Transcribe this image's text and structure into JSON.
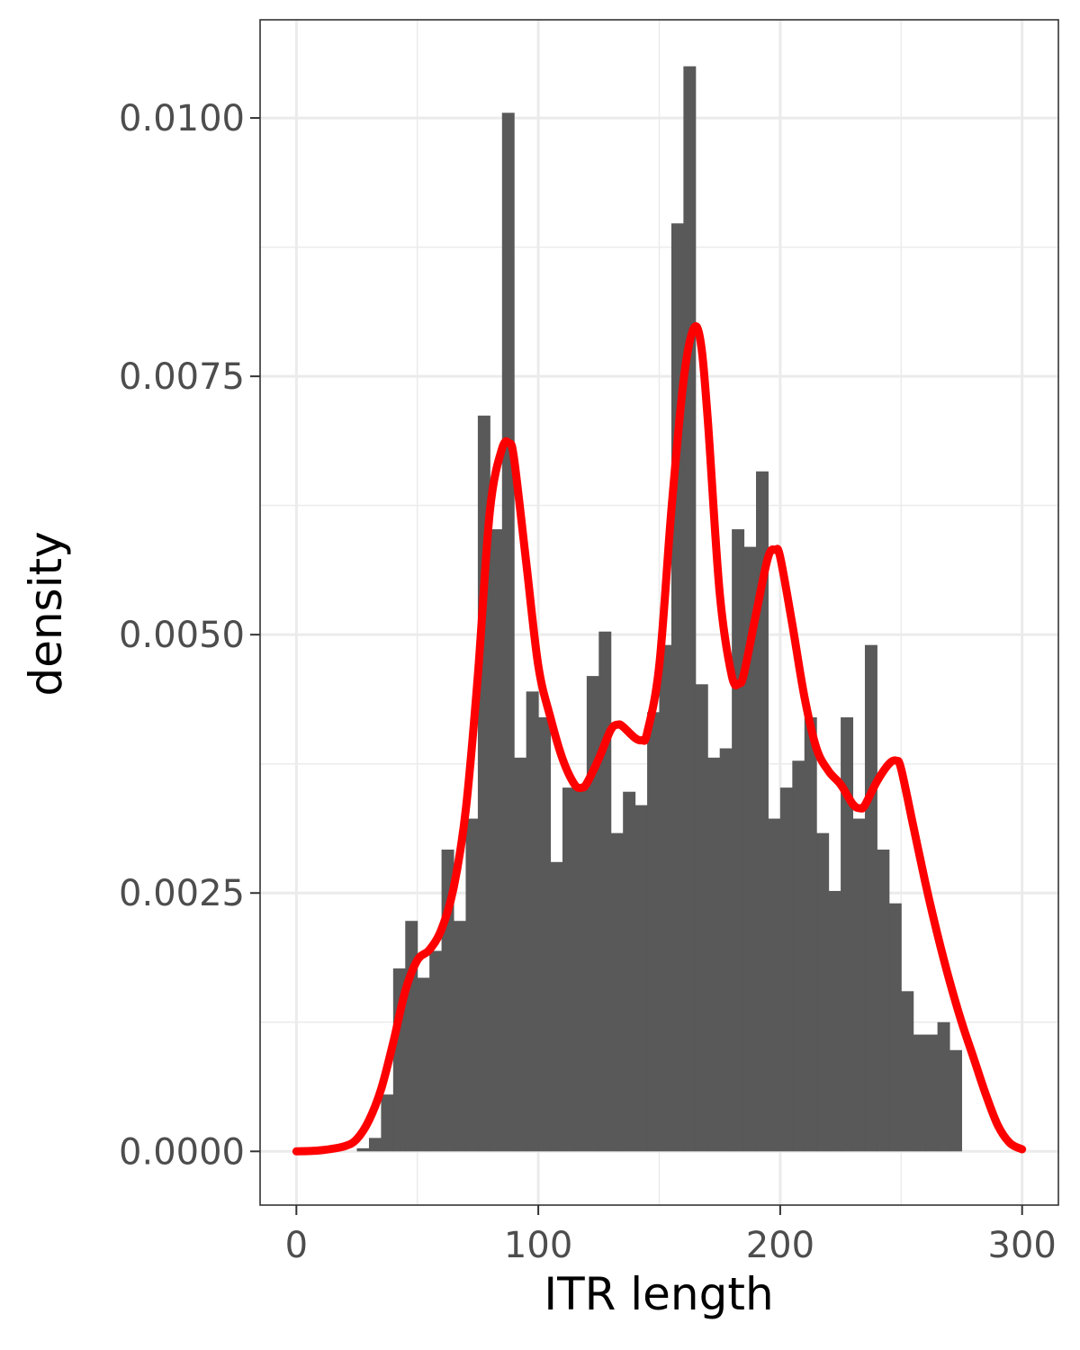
{
  "chart_data": {
    "type": "bar",
    "xlabel": "ITR length",
    "ylabel": "density",
    "xlim": [
      -15,
      315
    ],
    "ylim": [
      -0.00052,
      0.01095
    ],
    "x_ticks": [
      0,
      100,
      200,
      300
    ],
    "x_tick_labels": [
      "0",
      "100",
      "200",
      "300"
    ],
    "y_ticks": [
      0,
      0.0025,
      0.005,
      0.0075,
      0.01
    ],
    "y_tick_labels": [
      "0.0000",
      "0.0025",
      "0.0050",
      "0.0075",
      "0.0100"
    ],
    "grid": true,
    "colors": {
      "bars": "#595959",
      "density_line": "#ff0000",
      "grid": "#ebebeb",
      "panel_border": "#333333"
    },
    "histogram": {
      "bin_width": 5,
      "bin_starts": [
        25,
        30,
        35,
        40,
        45,
        50,
        55,
        60,
        65,
        70,
        75,
        80,
        85,
        90,
        95,
        100,
        105,
        110,
        115,
        120,
        125,
        130,
        135,
        140,
        145,
        150,
        155,
        160,
        165,
        170,
        175,
        180,
        185,
        190,
        195,
        200,
        205,
        210,
        215,
        220,
        225,
        230,
        235,
        240,
        245,
        250,
        255,
        260,
        265,
        270,
        275,
        280,
        285
      ],
      "density": [
        3e-05,
        0.00013,
        0.00055,
        0.00177,
        0.00223,
        0.00168,
        0.00194,
        0.00292,
        0.00223,
        0.00322,
        0.00712,
        0.00602,
        0.01005,
        0.00381,
        0.00445,
        0.0042,
        0.0028,
        0.00352,
        0.00352,
        0.0046,
        0.00503,
        0.00308,
        0.00348,
        0.00335,
        0.00425,
        0.0049,
        0.00898,
        0.0105,
        0.00452,
        0.00381,
        0.0039,
        0.00602,
        0.00585,
        0.00658,
        0.00322,
        0.00352,
        0.00378,
        0.0042,
        0.00308,
        0.00252,
        0.0042,
        0.00322,
        0.0049,
        0.00292,
        0.0024,
        0.00155,
        0.00113,
        0.00113,
        0.00125,
        0.00098,
        0,
        0,
        0
      ]
    },
    "density_curve": {
      "x": [
        0,
        10,
        20,
        25,
        30,
        35,
        40,
        45,
        50,
        55,
        60,
        65,
        70,
        75,
        80,
        85,
        88,
        90,
        95,
        100,
        105,
        110,
        115,
        118,
        120,
        125,
        130,
        133,
        135,
        140,
        143,
        145,
        150,
        155,
        160,
        164,
        167,
        170,
        175,
        180,
        183,
        185,
        190,
        195,
        198,
        200,
        205,
        210,
        215,
        220,
        225,
        230,
        233,
        235,
        240,
        245,
        248,
        250,
        255,
        260,
        265,
        270,
        275,
        280,
        285,
        290,
        295,
        300
      ],
      "y": [
        0.0,
        1e-05,
        5e-05,
        0.00012,
        0.0003,
        0.0006,
        0.00105,
        0.00155,
        0.00185,
        0.00195,
        0.00215,
        0.00255,
        0.0033,
        0.0046,
        0.0062,
        0.0068,
        0.00685,
        0.0067,
        0.0057,
        0.0047,
        0.0042,
        0.0038,
        0.00355,
        0.00352,
        0.00356,
        0.0038,
        0.00408,
        0.00413,
        0.00411,
        0.004,
        0.00398,
        0.00405,
        0.0047,
        0.0062,
        0.00745,
        0.00795,
        0.00785,
        0.0071,
        0.0054,
        0.0046,
        0.00453,
        0.00462,
        0.0052,
        0.00575,
        0.00582,
        0.00575,
        0.0051,
        0.0044,
        0.0039,
        0.00368,
        0.00355,
        0.00336,
        0.00332,
        0.00335,
        0.00358,
        0.00375,
        0.00378,
        0.0037,
        0.00315,
        0.0026,
        0.0021,
        0.00165,
        0.00125,
        0.0009,
        0.00055,
        0.00025,
        8e-05,
        2e-05
      ]
    }
  }
}
